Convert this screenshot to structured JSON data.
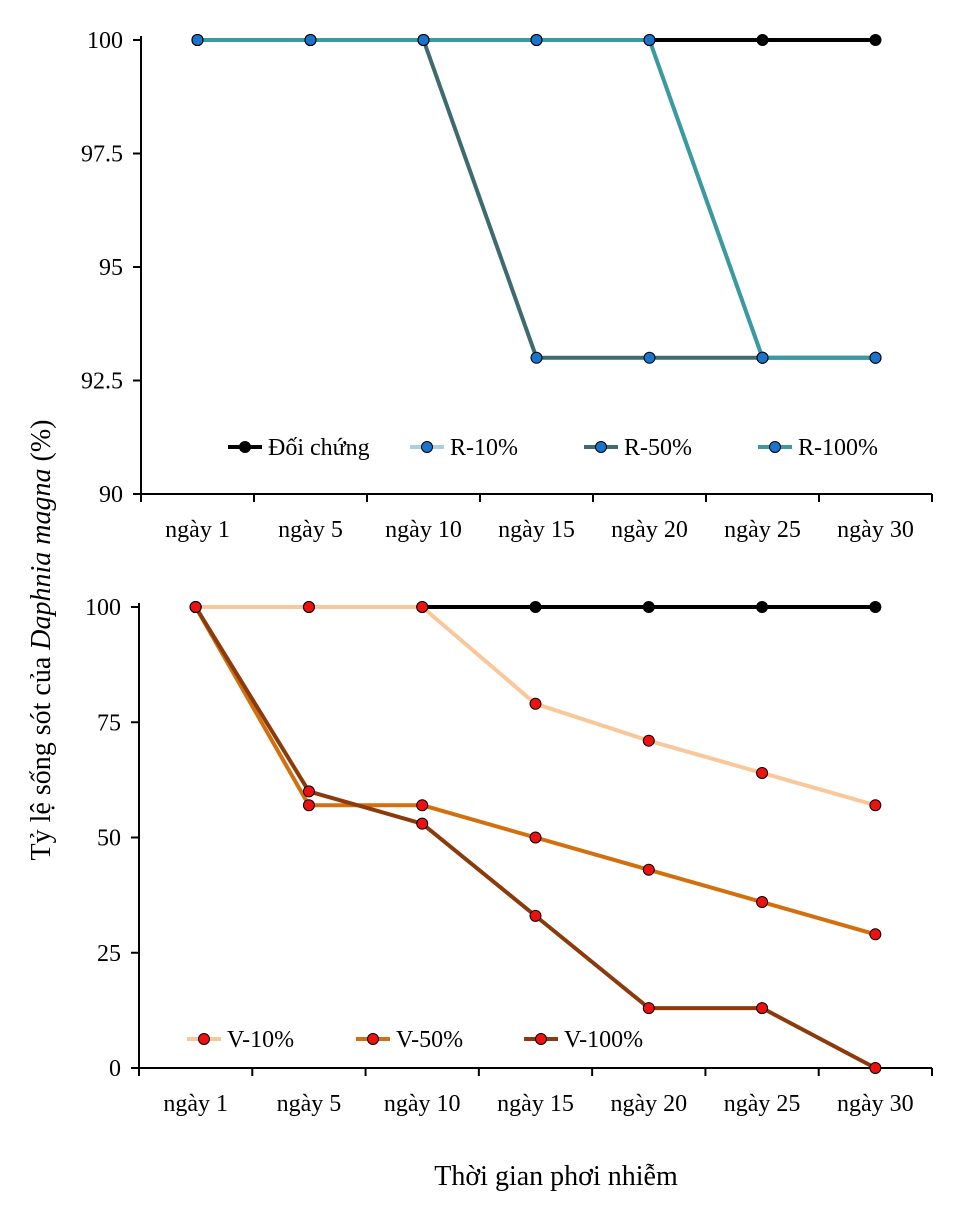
{
  "figure": {
    "ylabel_parts": [
      "Tỷ lệ sống sót của ",
      "Daphnia magna",
      " (%)"
    ],
    "xlabel": "Thời gian phơi nhiễm"
  },
  "chart_data": [
    {
      "type": "line",
      "categories": [
        "ngày 1",
        "ngày 5",
        "ngày 10",
        "ngày 15",
        "ngày 20",
        "ngày 25",
        "ngày 30"
      ],
      "ylim": [
        90,
        100
      ],
      "yticks": [
        "90",
        "92.5",
        "95",
        "97.5",
        "100"
      ],
      "grid": false,
      "legend_position": "bottom",
      "series": [
        {
          "name": "Đối chứng",
          "values": [
            100,
            100,
            100,
            100,
            100,
            100,
            100
          ],
          "line_color": "#000000",
          "marker_color": "#000000"
        },
        {
          "name": "R-10%",
          "values": [
            100,
            100,
            100,
            100,
            100,
            93,
            93
          ],
          "line_color": "#a9cfe3",
          "marker_color": "#1874cd"
        },
        {
          "name": "R-50%",
          "values": [
            100,
            100,
            100,
            93,
            93,
            93,
            93
          ],
          "line_color": "#3d6b70",
          "marker_color": "#1874cd"
        },
        {
          "name": "R-100%",
          "values": [
            100,
            100,
            100,
            100,
            100,
            93,
            93
          ],
          "line_color": "#3a9aa0",
          "marker_color": "#1874cd"
        }
      ]
    },
    {
      "type": "line",
      "categories": [
        "ngày 1",
        "ngày 5",
        "ngày 10",
        "ngày 15",
        "ngày 20",
        "ngày 25",
        "ngày 30"
      ],
      "ylim": [
        0,
        100
      ],
      "yticks": [
        "0",
        "25",
        "50",
        "75",
        "100"
      ],
      "grid": false,
      "legend_position": "bottom",
      "series": [
        {
          "name": "",
          "values": [
            100,
            100,
            100,
            100,
            100,
            100,
            100
          ],
          "line_color": "#000000",
          "marker_color": "#000000",
          "legend": false
        },
        {
          "name": "V-10%",
          "values": [
            100,
            100,
            100,
            79,
            71,
            64,
            57
          ],
          "line_color": "#f9c89a",
          "marker_color": "#ee1111"
        },
        {
          "name": "V-50%",
          "values": [
            100,
            57,
            57,
            50,
            43,
            36,
            29
          ],
          "line_color": "#d2700f",
          "marker_color": "#ee1111"
        },
        {
          "name": "V-100%",
          "values": [
            100,
            60,
            53,
            33,
            13,
            13,
            0
          ],
          "line_color": "#8b3a0c",
          "marker_color": "#ee1111"
        }
      ]
    }
  ]
}
